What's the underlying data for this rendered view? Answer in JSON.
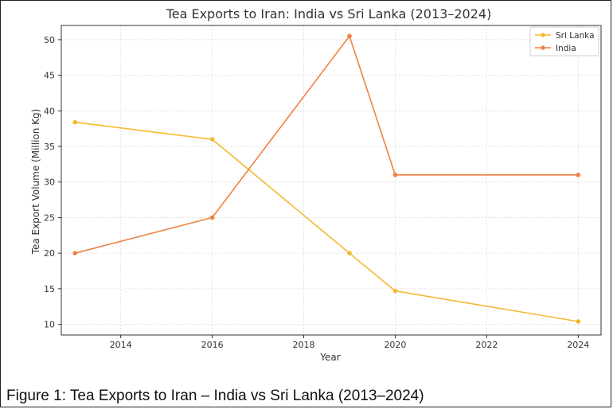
{
  "chart_data": {
    "type": "line",
    "title": "Tea Exports to Iran: India vs Sri Lanka (2013–2024)",
    "xlabel": "Year",
    "ylabel": "Tea Export Volume (Million Kg)",
    "xlim": [
      2012.7,
      2024.5
    ],
    "ylim": [
      8.5,
      52
    ],
    "xticks": [
      2014,
      2016,
      2018,
      2020,
      2022,
      2024
    ],
    "yticks": [
      10,
      15,
      20,
      25,
      30,
      35,
      40,
      45,
      50
    ],
    "grid": true,
    "legend_position": "top-right",
    "series": [
      {
        "name": "Sri Lanka",
        "color": "#f5b82e",
        "x": [
          2013,
          2016,
          2019,
          2020,
          2024
        ],
        "y": [
          38.4,
          36.0,
          20.0,
          14.7,
          10.4
        ]
      },
      {
        "name": "India",
        "color": "#ee8142",
        "x": [
          2013,
          2016,
          2019,
          2020,
          2024
        ],
        "y": [
          20.0,
          25.0,
          50.5,
          31.0,
          31.0
        ]
      }
    ]
  },
  "caption": "Figure 1: Tea Exports to Iran – India vs Sri Lanka (2013–2024)"
}
